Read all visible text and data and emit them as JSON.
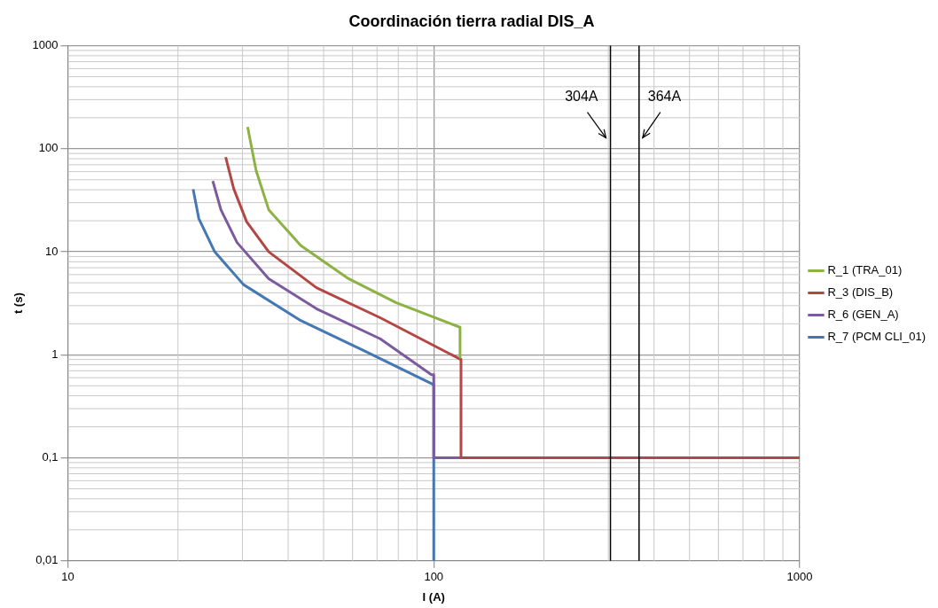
{
  "chart_data": {
    "type": "line",
    "title": "Coordinación tierra radial DIS_A",
    "xlabel": "I (A)",
    "ylabel": "t (s)",
    "log": "xy",
    "xlim": [
      10,
      1000
    ],
    "ylim": [
      0.01,
      1000
    ],
    "xticks": [
      10,
      100,
      1000
    ],
    "yticks": [
      {
        "value": 0.01,
        "label": "0,01"
      },
      {
        "value": 0.1,
        "label": "0,1"
      },
      1,
      10,
      100,
      1000
    ],
    "grid": true,
    "legend": "right",
    "marker": "none",
    "line_style": "solid",
    "series": [
      {
        "name": "R_1 (TRA_01)",
        "color": "#8db244",
        "x": [
          31.0,
          32.7,
          35.4,
          43.3,
          58.5,
          78.8,
          118,
          118
        ],
        "values": [
          163,
          61.3,
          25.6,
          11.5,
          5.48,
          3.22,
          1.85,
          0.95
        ]
      },
      {
        "name": "R_3 (DIS_B)",
        "color": "#b34743",
        "x": [
          27.0,
          28.4,
          30.8,
          35.4,
          47.8,
          71.4,
          118,
          118.7,
          118.7,
          1000
        ],
        "values": [
          83,
          41,
          19.6,
          10.0,
          4.48,
          2.29,
          0.908,
          0.908,
          0.1,
          0.1
        ]
      },
      {
        "name": "R_6 (GEN_A)",
        "color": "#7c5a9e",
        "x": [
          24.9,
          26.2,
          29.0,
          35.4,
          47.8,
          71.4,
          98.5,
          100,
          100,
          1000
        ],
        "values": [
          48.6,
          25.6,
          12.3,
          5.48,
          2.8,
          1.43,
          0.641,
          0.641,
          0.1,
          0.1
        ]
      },
      {
        "name": "R_7 (PCM CLI_01)",
        "color": "#4478b5",
        "x": [
          22.0,
          22.8,
          25.2,
          30.2,
          43.3,
          64.6,
          99.5,
          100,
          100
        ],
        "values": [
          40.5,
          21,
          10.0,
          4.8,
          2.15,
          1.09,
          0.516,
          0.516,
          0.01
        ]
      }
    ],
    "ref_lines": [
      {
        "axis": "x",
        "value": 304,
        "label": "304A",
        "color": "#000000"
      },
      {
        "axis": "x",
        "value": 364,
        "label": "364A",
        "color": "#000000"
      }
    ]
  }
}
